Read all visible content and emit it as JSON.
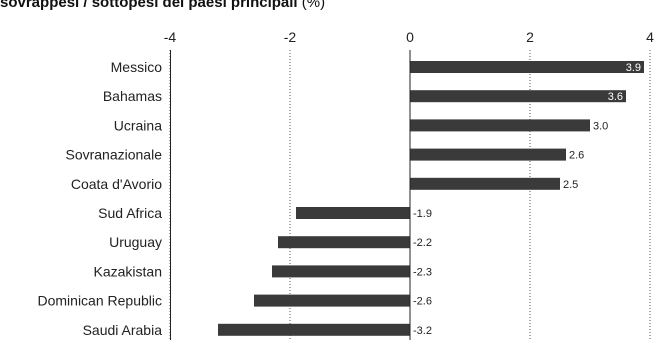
{
  "title": {
    "bold": "sovrappesi / sottopesi dei paesi principali",
    "normal": " (%)"
  },
  "chart_data": {
    "type": "bar",
    "orientation": "horizontal",
    "categories": [
      "Messico",
      "Bahamas",
      "Ucraina",
      "Sovranazionale",
      "Coata d'Avorio",
      "Sud Africa",
      "Uruguay",
      "Kazakistan",
      "Dominican Republic",
      "Saudi Arabia"
    ],
    "values": [
      3.9,
      3.6,
      3.0,
      2.6,
      2.5,
      -1.9,
      -2.2,
      -2.3,
      -2.6,
      -3.2
    ],
    "value_labels": [
      "3.9",
      "3.6",
      "3.0",
      "2.6",
      "2.5",
      "-1.9",
      "-2.2",
      "-2.3",
      "-2.6",
      "-3.2"
    ],
    "xlim": [
      -4,
      4
    ],
    "xticks": [
      -4,
      -2,
      0,
      2,
      4
    ],
    "xtick_labels": [
      "-4",
      "-2",
      "0",
      "2",
      "4"
    ],
    "axis_position": "top",
    "grid": "vertical dotted",
    "bar_color": "#3a3a3a",
    "label_color_inside": "#ffffff",
    "label_color_outside": "#222222"
  }
}
